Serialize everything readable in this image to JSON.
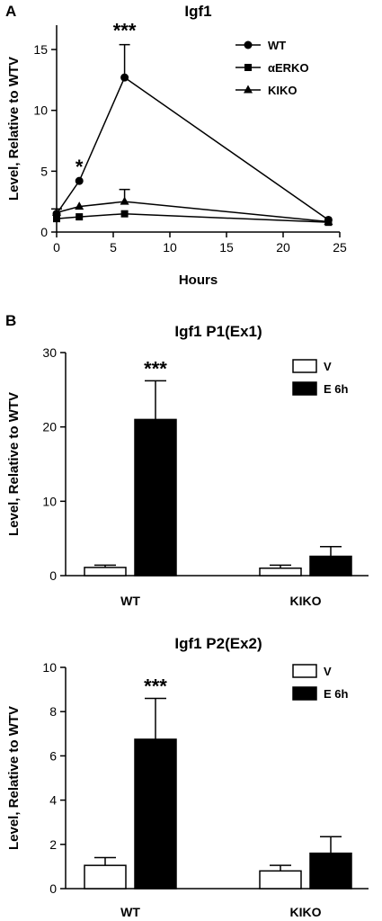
{
  "panels": {
    "a_letter": "A",
    "b_letter": "B"
  },
  "chart_data": [
    {
      "type": "line",
      "title": "Igf1",
      "xlabel": "Hours",
      "ylabel": "Level, Relative to WTV",
      "xlim": [
        0,
        25
      ],
      "ylim": [
        0,
        17
      ],
      "xticks": [
        "0",
        "5",
        "10",
        "15",
        "20",
        "25"
      ],
      "yticks": [
        "0",
        "5",
        "10",
        "15"
      ],
      "x": [
        0,
        2,
        6,
        24
      ],
      "legend_position": "top-right",
      "series": [
        {
          "name": "WT",
          "marker": "circle",
          "values": [
            1.5,
            4.2,
            12.7,
            1.0
          ],
          "errors": [
            0,
            0,
            2.7,
            0
          ]
        },
        {
          "name": "αERKO",
          "marker": "square",
          "values": [
            1.1,
            1.25,
            1.5,
            0.8
          ],
          "errors": [
            0,
            0,
            0,
            0
          ]
        },
        {
          "name": "KIKO",
          "marker": "triangle",
          "values": [
            1.6,
            2.1,
            2.5,
            0.85
          ],
          "errors": [
            0.3,
            0,
            1.0,
            0
          ]
        }
      ],
      "annotations": [
        {
          "text": "*",
          "x": 2,
          "y": 4.2
        },
        {
          "text": "***",
          "x": 6,
          "y": 15.4
        }
      ],
      "grid": false
    },
    {
      "type": "bar",
      "title": "Igf1 P1(Ex1)",
      "xlabel": "",
      "ylabel": "Level, Relative to WTV",
      "ylim": [
        0,
        30
      ],
      "yticks": [
        "0",
        "10",
        "20",
        "30"
      ],
      "categories": [
        "WT",
        "KIKO"
      ],
      "legend_position": "top-right",
      "series": [
        {
          "name": "V",
          "fill": "#ffffff",
          "values": [
            1.1,
            1.0
          ],
          "errors": [
            0.3,
            0.4
          ]
        },
        {
          "name": "E 6h",
          "fill": "#000000",
          "values": [
            21.0,
            2.6
          ],
          "errors": [
            5.2,
            1.3
          ]
        }
      ],
      "annotations": [
        {
          "text": "***",
          "category": "WT",
          "series": "E 6h"
        }
      ],
      "grid": false
    },
    {
      "type": "bar",
      "title": "Igf1 P2(Ex2)",
      "xlabel": "",
      "ylabel": "Level, Relative to WTV",
      "ylim": [
        0,
        10
      ],
      "yticks": [
        "0",
        "2",
        "4",
        "6",
        "8",
        "10"
      ],
      "categories": [
        "WT",
        "KIKO"
      ],
      "legend_position": "top-right",
      "series": [
        {
          "name": "V",
          "fill": "#ffffff",
          "values": [
            1.05,
            0.8
          ],
          "errors": [
            0.35,
            0.25
          ]
        },
        {
          "name": "E 6h",
          "fill": "#000000",
          "values": [
            6.75,
            1.6
          ],
          "errors": [
            1.85,
            0.75
          ]
        }
      ],
      "annotations": [
        {
          "text": "***",
          "category": "WT",
          "series": "E 6h"
        }
      ],
      "grid": false
    }
  ]
}
